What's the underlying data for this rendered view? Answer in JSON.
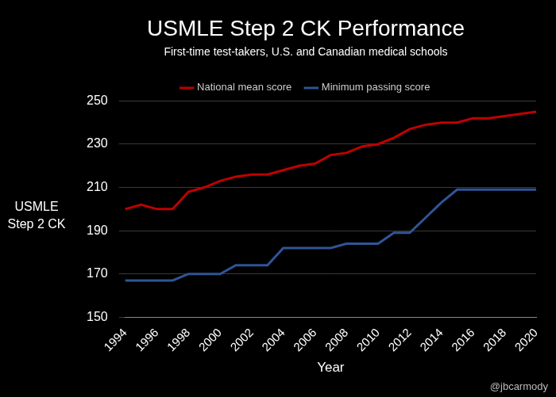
{
  "chart_data": {
    "type": "line",
    "title": "USMLE Step 2 CK Performance",
    "subtitle": "First-time test-takers, U.S. and Canadian medical schools",
    "x_label": "Year",
    "y_label": "USMLE Step 2 CK",
    "annotation": "@jbcarmody",
    "categories": [
      "1994",
      null,
      "1996",
      null,
      "1998",
      null,
      "2000",
      null,
      "2002",
      null,
      "2004",
      null,
      "2006",
      null,
      "2008",
      null,
      "2010",
      null,
      "2012",
      null,
      "2014",
      null,
      "2016",
      null,
      "2018",
      null,
      "2020"
    ],
    "series": [
      {
        "name": "National mean score",
        "color": "#c00000",
        "values": [
          200,
          202,
          200,
          200,
          208,
          210,
          213,
          215,
          216,
          216,
          218,
          220,
          221,
          225,
          226,
          229,
          230,
          233,
          237,
          239,
          240,
          240,
          242,
          242,
          243,
          244,
          245
        ]
      },
      {
        "name": "Minimum passing score",
        "color": "#2f5597",
        "values": [
          167,
          167,
          167,
          167,
          170,
          170,
          170,
          174,
          174,
          174,
          182,
          182,
          182,
          182,
          184,
          184,
          184,
          189,
          189,
          196,
          203,
          209,
          209,
          209,
          209,
          209,
          209
        ]
      }
    ],
    "ylim": [
      150,
      250
    ],
    "yticks": [
      150,
      170,
      190,
      210,
      230,
      250
    ],
    "grid": true,
    "legend": "top"
  }
}
